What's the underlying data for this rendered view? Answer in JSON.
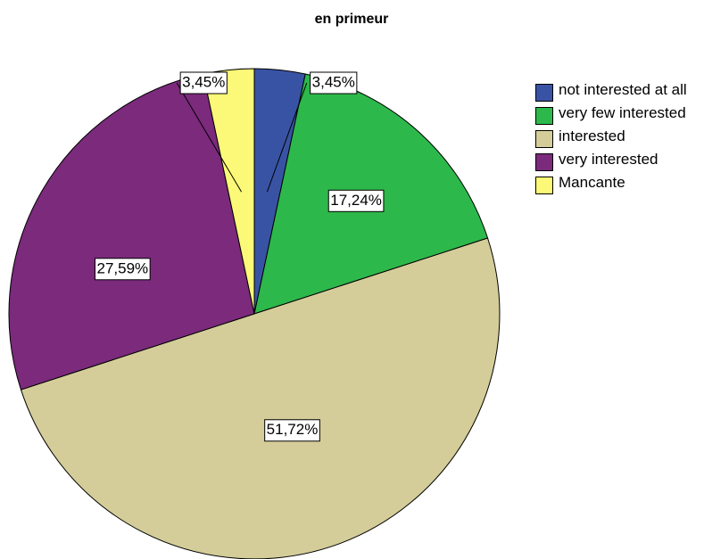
{
  "chart_data": {
    "type": "pie",
    "title": "en primeur",
    "categories": [
      "not interested at all",
      "very few interested",
      "interested",
      "very interested",
      "Mancante"
    ],
    "values": [
      3.45,
      17.24,
      51.72,
      27.59,
      3.45
    ],
    "value_labels": [
      "3,45%",
      "17,24%",
      "51,72%",
      "27,59%",
      "3,45%"
    ],
    "colors": [
      "#3953a4",
      "#2db84b",
      "#d4cd99",
      "#7b2a7c",
      "#fbf977"
    ],
    "legend": "right"
  }
}
